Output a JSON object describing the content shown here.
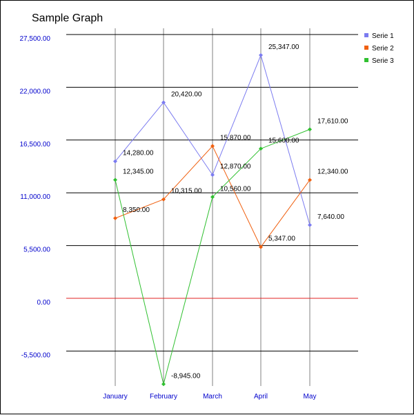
{
  "chart_data": {
    "type": "line",
    "title": "Sample Graph",
    "categories": [
      "January",
      "February",
      "March",
      "April",
      "May"
    ],
    "y_ticks": [
      "27,500.00",
      "22,000.00",
      "16,500.00",
      "11,000.00",
      "5,500.00",
      "0.00",
      "-5,500.00"
    ],
    "y_tick_values": [
      27500,
      22000,
      16500,
      11000,
      5500,
      0,
      -5500
    ],
    "ylim": [
      -9000,
      28000
    ],
    "grid": "horizontal and vertical",
    "legend_position": "top-right",
    "zero_line_color": "#e02020",
    "series": [
      {
        "name": "Serie 1",
        "color": "#7b7bf0",
        "values": [
          14280,
          20420,
          12870,
          25347,
          7640
        ],
        "labels": [
          "14,280.00",
          "20,420.00",
          "12,870.00",
          "25,347.00",
          "7,640.00"
        ]
      },
      {
        "name": "Serie 2",
        "color": "#f06010",
        "values": [
          8350,
          10315,
          15870,
          5347,
          12340
        ],
        "labels": [
          "8,350.00",
          "10,315.00",
          "15,870.00",
          "5,347.00",
          "12,340.00"
        ]
      },
      {
        "name": "Serie 3",
        "color": "#30c030",
        "values": [
          12345,
          -8945,
          10560,
          15600,
          17610
        ],
        "labels": [
          "12,345.00",
          "-8,945.00",
          "10,560.00",
          "15,600.00",
          "17,610.00"
        ]
      }
    ]
  }
}
